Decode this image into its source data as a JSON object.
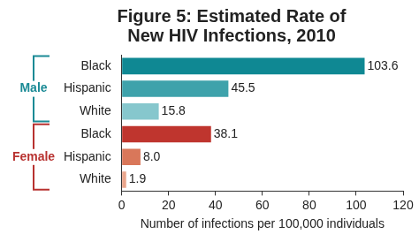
{
  "chart_data": {
    "type": "bar",
    "orientation": "horizontal",
    "title": "Figure 5: Estimated Rate of New HIV Infections, 2010",
    "x_label": "Number of infections per 100,000 individuals",
    "groups": [
      {
        "name": "Male",
        "color": "#1a8a95",
        "categories": [
          "Black",
          "Hispanic",
          "White"
        ],
        "values": [
          103.6,
          45.5,
          15.8
        ],
        "value_labels": [
          "103.6",
          "45.5",
          "15.8"
        ],
        "colors": [
          "#0f8893",
          "#3ea2ab",
          "#86c7cd"
        ]
      },
      {
        "name": "Female",
        "color": "#b83230",
        "categories": [
          "Black",
          "Hispanic",
          "White"
        ],
        "values": [
          38.1,
          8.0,
          1.9
        ],
        "value_labels": [
          "38.1",
          "8.0",
          "1.9"
        ],
        "colors": [
          "#bf352e",
          "#d9775a",
          "#eaa68c"
        ]
      }
    ],
    "xlim": [
      0,
      120
    ],
    "xticks": [
      0,
      20,
      40,
      60,
      80,
      100,
      120
    ],
    "grid": false,
    "data_labels": true
  }
}
